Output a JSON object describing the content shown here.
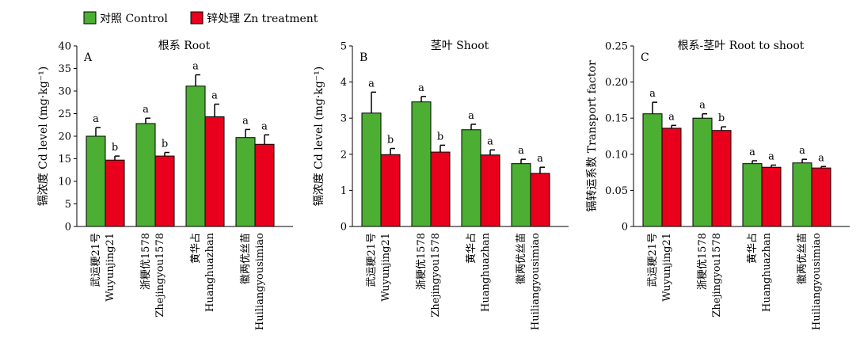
{
  "colors": {
    "control": "#4caf33",
    "zn": "#e8001c",
    "axis": "#000000"
  },
  "legend": [
    {
      "label": "对照 Control",
      "color": "#4caf33"
    },
    {
      "label": "锌处理 Zn treatment",
      "color": "#e8001c"
    }
  ],
  "chart_data": [
    {
      "type": "bar",
      "letter": "A",
      "title": "根系 Root",
      "ylabel": "镉浓度 Cd level (mg·kg⁻¹)",
      "ylim": [
        0,
        40
      ],
      "yticks": [
        0,
        5,
        10,
        15,
        20,
        25,
        30,
        35,
        40
      ],
      "ytick_labels": [
        "0",
        "5",
        "10",
        "15",
        "20",
        "25",
        "30",
        "35",
        "40"
      ],
      "categories": [
        {
          "cn": "武运粳21号",
          "en": "Wuyunjing21"
        },
        {
          "cn": "浙粳优1578",
          "en": "Zhejingyou1578"
        },
        {
          "cn": "黄华占",
          "en": "Huanghuazhan"
        },
        {
          "cn": "徽两优丝苗",
          "en": "Huiliangyousimiao"
        }
      ],
      "series": [
        {
          "name": "对照 Control",
          "values": [
            20.0,
            22.8,
            31.1,
            19.7
          ],
          "errors": [
            1.9,
            1.2,
            2.5,
            1.8
          ],
          "letters": [
            "a",
            "a",
            "a",
            "a"
          ]
        },
        {
          "name": "锌处理 Zn treatment",
          "values": [
            14.7,
            15.6,
            24.3,
            18.2
          ],
          "errors": [
            0.9,
            0.8,
            2.8,
            2.1
          ],
          "letters": [
            "b",
            "b",
            "a",
            "a"
          ]
        }
      ]
    },
    {
      "type": "bar",
      "letter": "B",
      "title": "茎叶 Shoot",
      "ylabel": "镉浓度 Cd level (mg·kg⁻¹)",
      "ylim": [
        0,
        5
      ],
      "yticks": [
        0,
        1,
        2,
        3,
        4,
        5
      ],
      "ytick_labels": [
        "0",
        "1",
        "2",
        "3",
        "4",
        "5"
      ],
      "categories": [
        {
          "cn": "武运粳21号",
          "en": "Wuyunjing21"
        },
        {
          "cn": "浙粳优1578",
          "en": "Zhejingyou1578"
        },
        {
          "cn": "黄华占",
          "en": "Huanghuazhan"
        },
        {
          "cn": "徽两优丝苗",
          "en": "Huiliangyousimiao"
        }
      ],
      "series": [
        {
          "name": "对照 Control",
          "values": [
            3.14,
            3.45,
            2.68,
            1.74
          ],
          "errors": [
            0.58,
            0.15,
            0.15,
            0.12
          ],
          "letters": [
            "a",
            "a",
            "a",
            "a"
          ]
        },
        {
          "name": "锌处理 Zn treatment",
          "values": [
            1.99,
            2.06,
            1.98,
            1.47
          ],
          "errors": [
            0.17,
            0.19,
            0.14,
            0.17
          ],
          "letters": [
            "b",
            "b",
            "a",
            "a"
          ]
        }
      ]
    },
    {
      "type": "bar",
      "letter": "C",
      "title": "根系-茎叶 Root to shoot",
      "ylabel": "镉转运系数 Transport factor",
      "ylim": [
        0,
        0.25
      ],
      "yticks": [
        0,
        0.05,
        0.1,
        0.15,
        0.2,
        0.25
      ],
      "ytick_labels": [
        "0",
        "0.05",
        "0.10",
        "0.15",
        "0.20",
        "0.25"
      ],
      "categories": [
        {
          "cn": "武运粳21号",
          "en": "Wuyunjing21"
        },
        {
          "cn": "浙粳优1578",
          "en": "Zhejingyou1578"
        },
        {
          "cn": "黄华占",
          "en": "Huanghuazhan"
        },
        {
          "cn": "徽两优丝苗",
          "en": "Huiliangyousimiao"
        }
      ],
      "series": [
        {
          "name": "对照 Control",
          "values": [
            0.156,
            0.15,
            0.087,
            0.088
          ],
          "errors": [
            0.016,
            0.006,
            0.004,
            0.005
          ],
          "letters": [
            "a",
            "a",
            "a",
            "a"
          ]
        },
        {
          "name": "锌处理 Zn treatment",
          "values": [
            0.136,
            0.133,
            0.082,
            0.081
          ],
          "errors": [
            0.004,
            0.005,
            0.003,
            0.002
          ],
          "letters": [
            "a",
            "b",
            "a",
            "a"
          ]
        }
      ]
    }
  ]
}
